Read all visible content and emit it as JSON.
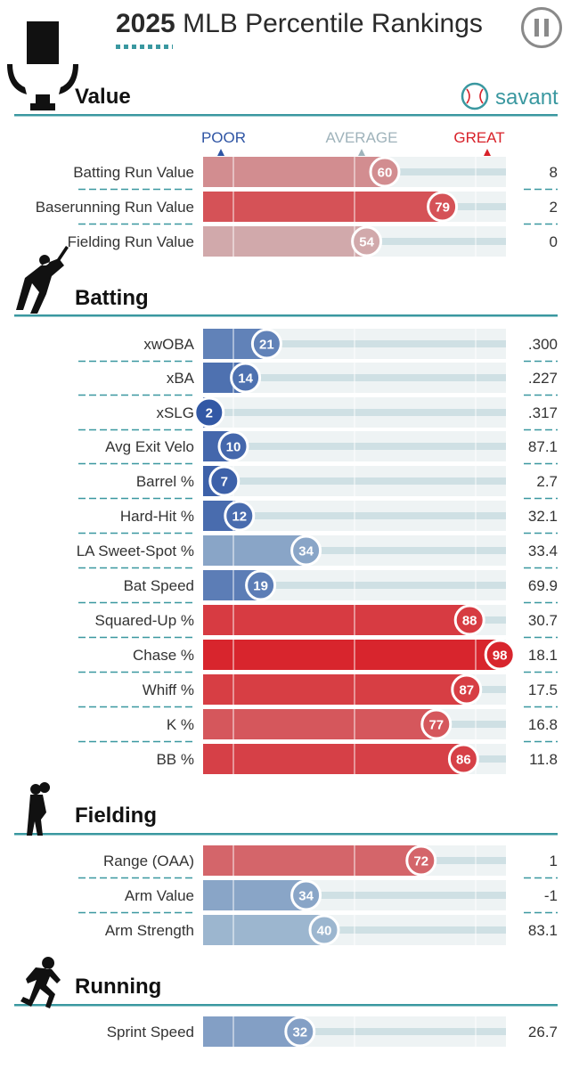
{
  "header": {
    "year": "2025",
    "title_rest": " MLB Percentile Rankings",
    "pause_icon": "pause-icon"
  },
  "brand": {
    "name": "savant",
    "icon": "baseball-icon"
  },
  "scale": {
    "poor": "POOR",
    "average": "AVERAGE",
    "great": "GREAT"
  },
  "colors": {
    "accent": "#3a98a0",
    "poor": "#2f55a4",
    "great": "#d82129",
    "average": "#b8b8b8"
  },
  "chart_data": {
    "type": "bar",
    "title": "2025 MLB Percentile Rankings",
    "xlim": [
      0,
      100
    ],
    "sections": [
      {
        "name": "Value",
        "icon": "trophy-icon",
        "rows": [
          {
            "label": "Batting Run Value",
            "percentile": 60,
            "value": "8"
          },
          {
            "label": "Baserunning Run Value",
            "percentile": 79,
            "value": "2"
          },
          {
            "label": "Fielding Run Value",
            "percentile": 54,
            "value": "0"
          }
        ]
      },
      {
        "name": "Batting",
        "icon": "batter-icon",
        "rows": [
          {
            "label": "xwOBA",
            "percentile": 21,
            "value": ".300"
          },
          {
            "label": "xBA",
            "percentile": 14,
            "value": ".227"
          },
          {
            "label": "xSLG",
            "percentile": 2,
            "value": ".317"
          },
          {
            "label": "Avg Exit Velo",
            "percentile": 10,
            "value": "87.1"
          },
          {
            "label": "Barrel %",
            "percentile": 7,
            "value": "2.7"
          },
          {
            "label": "Hard-Hit %",
            "percentile": 12,
            "value": "32.1"
          },
          {
            "label": "LA Sweet-Spot %",
            "percentile": 34,
            "value": "33.4"
          },
          {
            "label": "Bat Speed",
            "percentile": 19,
            "value": "69.9"
          },
          {
            "label": "Squared-Up %",
            "percentile": 88,
            "value": "30.7"
          },
          {
            "label": "Chase %",
            "percentile": 98,
            "value": "18.1"
          },
          {
            "label": "Whiff %",
            "percentile": 87,
            "value": "17.5"
          },
          {
            "label": "K %",
            "percentile": 77,
            "value": "16.8"
          },
          {
            "label": "BB %",
            "percentile": 86,
            "value": "11.8"
          }
        ]
      },
      {
        "name": "Fielding",
        "icon": "fielder-icon",
        "rows": [
          {
            "label": "Range (OAA)",
            "percentile": 72,
            "value": "1"
          },
          {
            "label": "Arm Value",
            "percentile": 34,
            "value": "-1"
          },
          {
            "label": "Arm Strength",
            "percentile": 40,
            "value": "83.1"
          }
        ]
      },
      {
        "name": "Running",
        "icon": "runner-icon",
        "rows": [
          {
            "label": "Sprint Speed",
            "percentile": 32,
            "value": "26.7"
          }
        ]
      }
    ]
  }
}
